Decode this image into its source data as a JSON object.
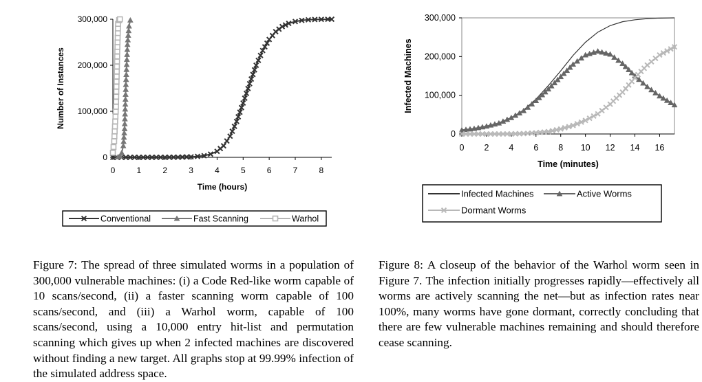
{
  "figure7": {
    "caption_label": "Figure 7:",
    "caption_text": "The spread of three simulated worms in a population of 300,000 vulnerable machines: (i) a Code Red-like worm capable of 10 scans/second, (ii) a faster scanning worm capable of 100 scans/second, and (iii) a Warhol worm, capable of 100 scans/second, using a 10,000 entry hit-list and permutation scanning which gives up when 2 infected machines are discovered without finding a new target. All graphs stop at 99.99% infection of the simulated address space."
  },
  "figure8": {
    "caption_label": "Figure 8:",
    "caption_text": "A closeup of the behavior of the Warhol worm seen in Figure 7. The infection initially progresses rapidly—effectively all worms are actively scanning the net—but as infection rates near 100%, many worms have gone dormant, correctly concluding that there are few vulnerable machines remaining and should therefore cease scanning."
  },
  "chart_data": [
    {
      "type": "line",
      "title": "",
      "xlabel": "Time (hours)",
      "ylabel": "Number of Instances",
      "xlim": [
        0,
        8.4
      ],
      "ylim": [
        0,
        300000
      ],
      "xticks": [
        0,
        1,
        2,
        3,
        4,
        5,
        6,
        7,
        8
      ],
      "yticks": [
        0,
        100000,
        200000,
        300000
      ],
      "ytick_labels": [
        "0",
        "100,000",
        "200,000",
        "300,000"
      ],
      "grid": false,
      "legend_position": "bottom",
      "series": [
        {
          "name": "Conventional",
          "color": "#333333",
          "marker": "x",
          "x": [
            0.0,
            0.5,
            1.0,
            1.5,
            2.0,
            2.5,
            3.0,
            3.25,
            3.5,
            3.75,
            4.0,
            4.25,
            4.5,
            4.75,
            5.0,
            5.25,
            5.5,
            5.75,
            6.0,
            6.25,
            6.5,
            6.75,
            7.0,
            7.25,
            7.5,
            7.75,
            8.0,
            8.25,
            8.4
          ],
          "y": [
            5,
            10,
            20,
            50,
            100,
            300,
            1000,
            2000,
            3500,
            7000,
            13000,
            25000,
            46000,
            78000,
            118000,
            160000,
            200000,
            232000,
            256000,
            273000,
            284000,
            291000,
            295000,
            297500,
            298800,
            299400,
            299700,
            299900,
            300000
          ]
        },
        {
          "name": "Fast Scanning",
          "color": "#777777",
          "marker": "triangle",
          "x": [
            0.2,
            0.28,
            0.34,
            0.4,
            0.45,
            0.5,
            0.56,
            0.62,
            0.67
          ],
          "y": [
            1000,
            3000,
            10000,
            25000,
            62000,
            158000,
            245000,
            285000,
            298000
          ]
        },
        {
          "name": "Warhol",
          "color": "#b5b5b5",
          "marker": "square",
          "x": [
            0.0,
            0.05,
            0.12,
            0.17,
            0.2,
            0.24,
            0.27
          ],
          "y": [
            10000,
            35000,
            110000,
            230000,
            290000,
            298000,
            300000
          ]
        }
      ]
    },
    {
      "type": "line",
      "title": "",
      "xlabel": "Time (minutes)",
      "ylabel": "Infected Machines",
      "xlim": [
        0,
        17.2
      ],
      "ylim": [
        0,
        300000
      ],
      "xticks": [
        0,
        2,
        4,
        6,
        8,
        10,
        12,
        14,
        16
      ],
      "yticks": [
        0,
        100000,
        200000,
        300000
      ],
      "ytick_labels": [
        "0",
        "100,000",
        "200,000",
        "300,000"
      ],
      "grid": false,
      "legend_position": "bottom",
      "series": [
        {
          "name": "Infected Machines",
          "color": "#333333",
          "marker": "none",
          "x": [
            0,
            1,
            2,
            3,
            4,
            5,
            6,
            7,
            8,
            9,
            10,
            11,
            12,
            13,
            14,
            15,
            16,
            17.2
          ],
          "y": [
            10000,
            14000,
            20000,
            28000,
            42000,
            62000,
            90000,
            125000,
            163000,
            203000,
            237000,
            263000,
            280000,
            290000,
            295000,
            298000,
            299400,
            300000
          ]
        },
        {
          "name": "Active Worms",
          "color": "#666666",
          "marker": "triangle",
          "x": [
            0,
            1,
            2,
            3,
            4,
            5,
            6,
            7,
            8,
            9,
            10,
            11,
            12,
            13,
            14,
            15,
            16,
            17.2
          ],
          "y": [
            10000,
            14000,
            20000,
            28000,
            42000,
            60000,
            86000,
            116000,
            148000,
            180000,
            204000,
            214000,
            206000,
            182000,
            150000,
            122000,
            98000,
            75000
          ]
        },
        {
          "name": "Dormant Worms",
          "color": "#b8b8b8",
          "marker": "x",
          "x": [
            0,
            1,
            2,
            3,
            4,
            5,
            6,
            7,
            8,
            9,
            10,
            11,
            12,
            13,
            14,
            15,
            16,
            17.2
          ],
          "y": [
            0,
            0,
            0,
            0,
            200,
            1000,
            3000,
            6000,
            13000,
            22000,
            35000,
            52000,
            77000,
            108000,
            145000,
            178000,
            204000,
            225000
          ]
        }
      ]
    }
  ]
}
